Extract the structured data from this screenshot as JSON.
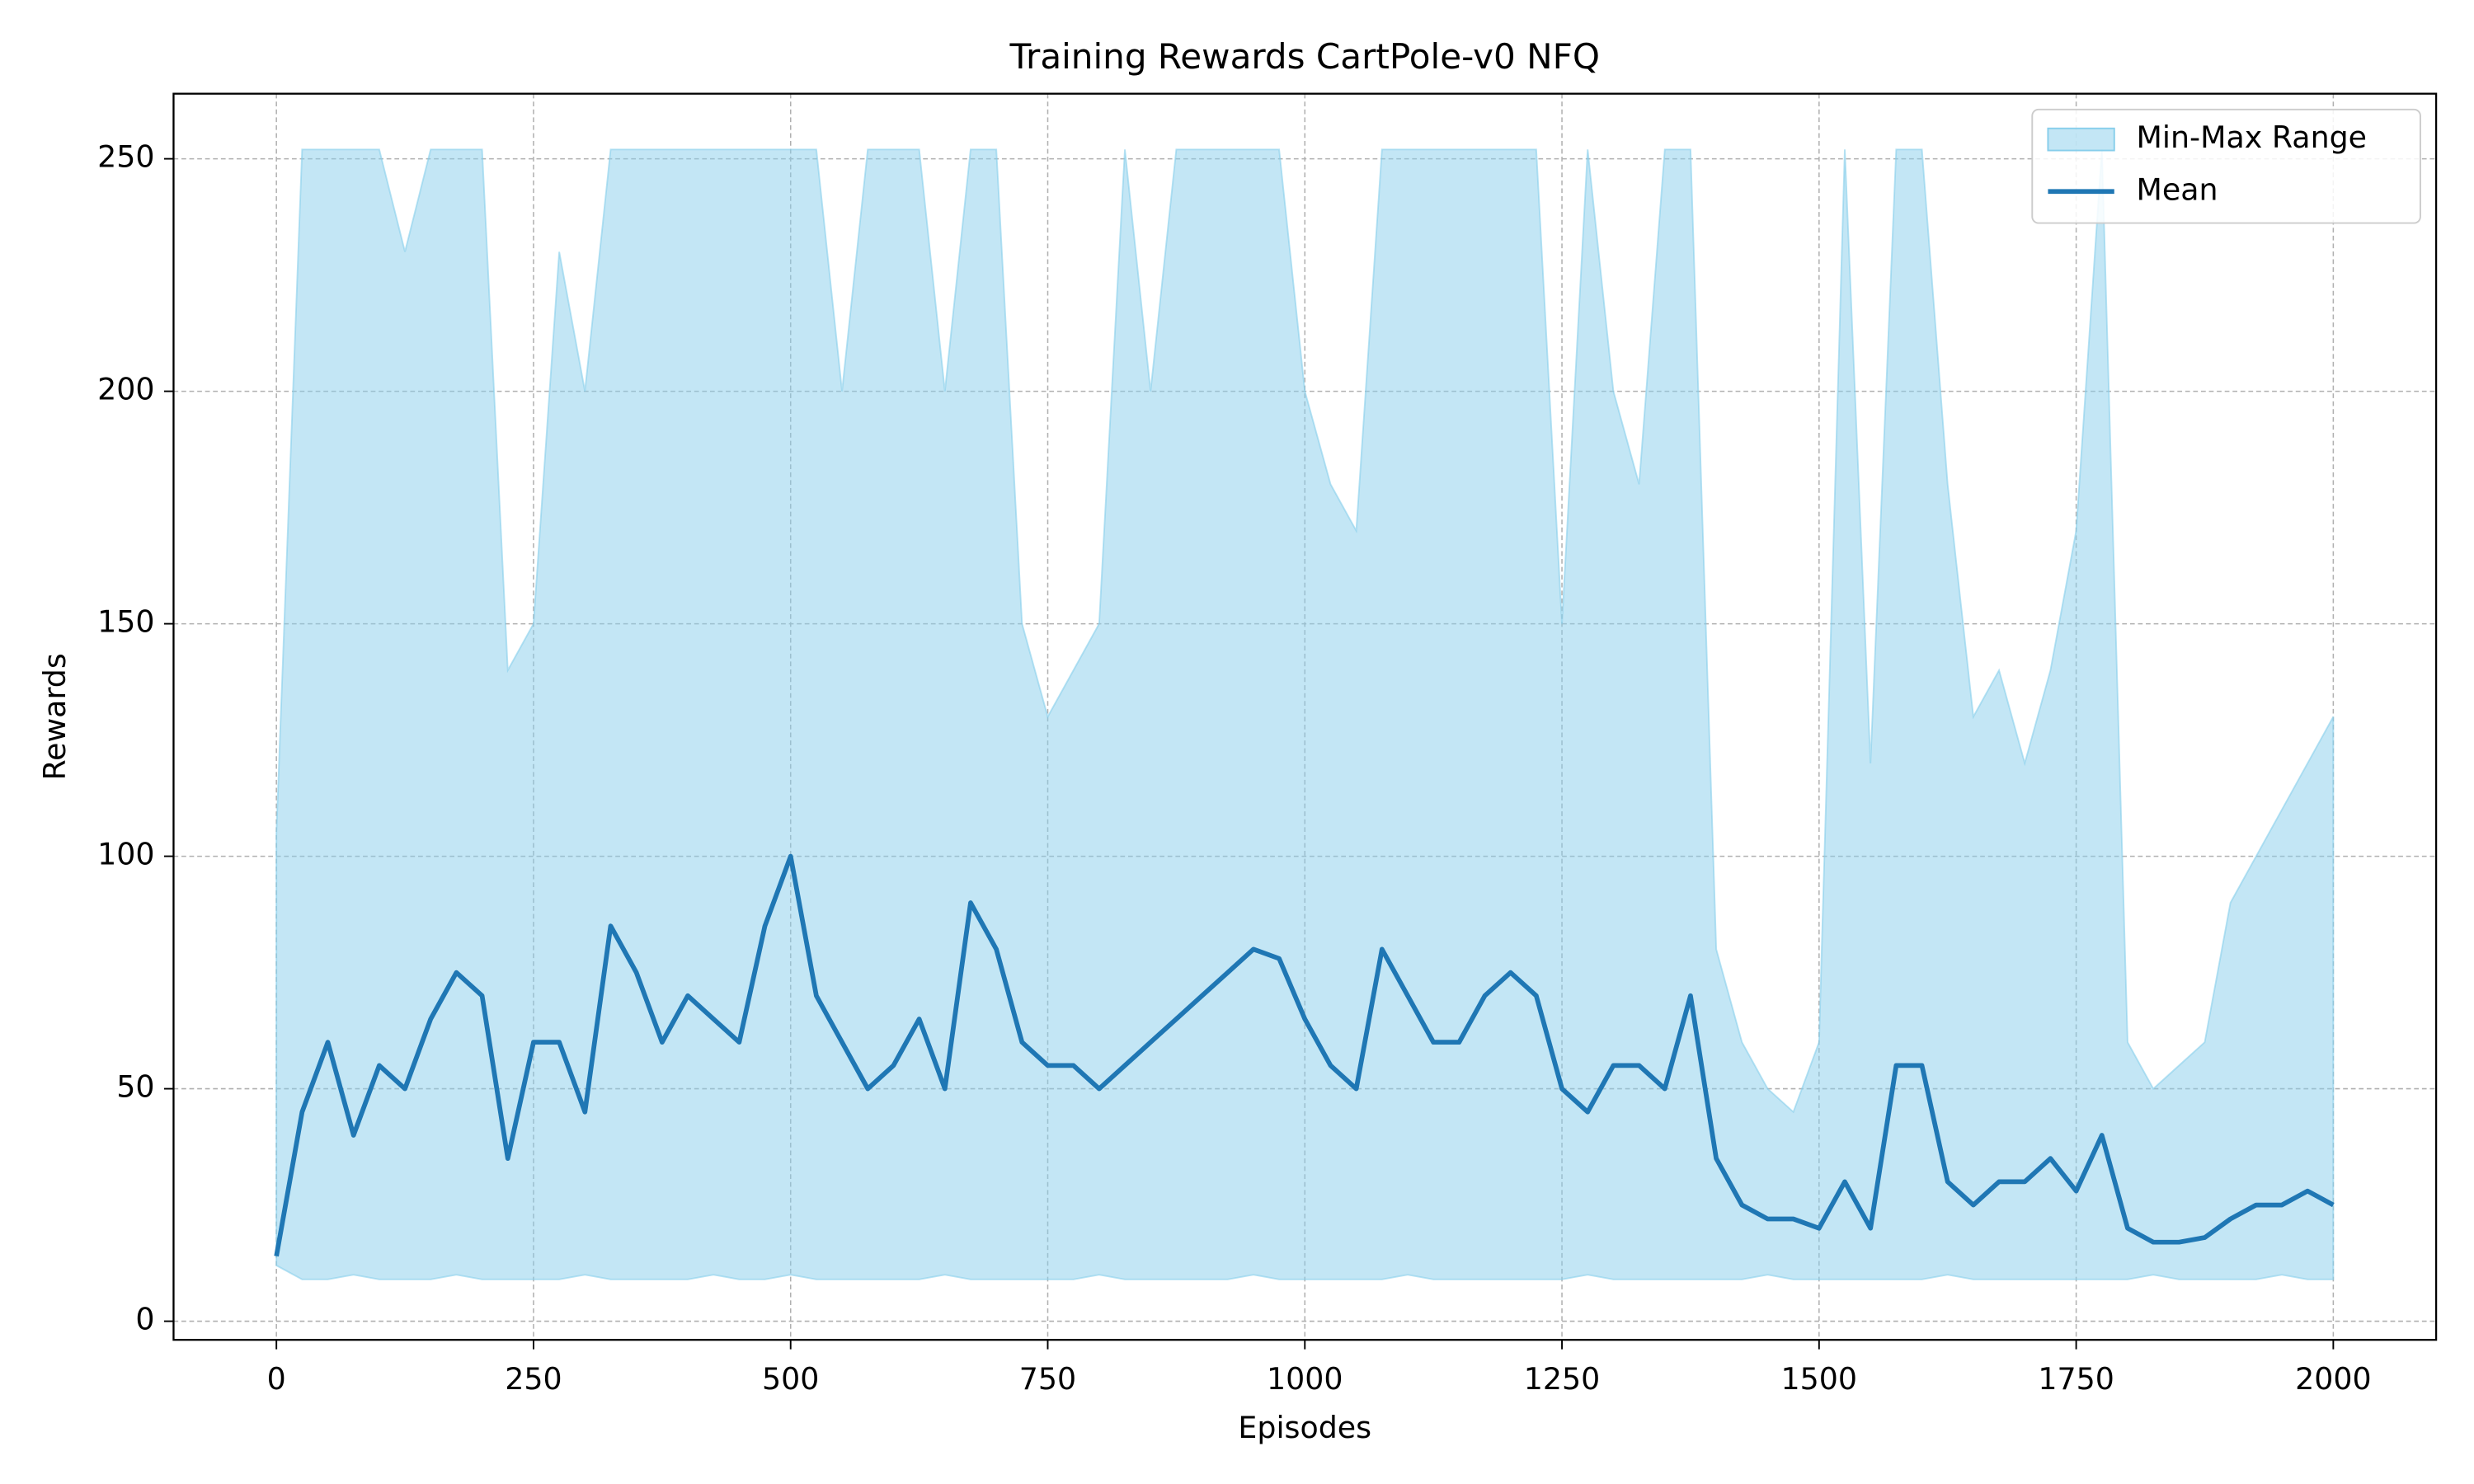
{
  "chart_data": {
    "type": "band-line",
    "title": "Training Rewards CartPole-v0 NFQ",
    "xlabel": "Episodes",
    "ylabel": "Rewards",
    "x": [
      0,
      25,
      50,
      75,
      100,
      125,
      150,
      175,
      200,
      225,
      250,
      275,
      300,
      325,
      350,
      375,
      400,
      425,
      450,
      475,
      500,
      525,
      550,
      575,
      600,
      625,
      650,
      675,
      700,
      725,
      750,
      775,
      800,
      825,
      850,
      875,
      900,
      925,
      950,
      975,
      1000,
      1025,
      1050,
      1075,
      1100,
      1125,
      1150,
      1175,
      1200,
      1225,
      1250,
      1275,
      1300,
      1325,
      1350,
      1375,
      1400,
      1425,
      1450,
      1475,
      1500,
      1525,
      1550,
      1575,
      1600,
      1625,
      1650,
      1675,
      1700,
      1725,
      1750,
      1775,
      1800,
      1825,
      1850,
      1875,
      1900,
      1925,
      1950,
      1975,
      2000
    ],
    "series": [
      {
        "name": "Min-Max Range",
        "color": "#87ceeb",
        "max": [
          105,
          252,
          252,
          252,
          252,
          230,
          252,
          252,
          252,
          140,
          150,
          230,
          200,
          252,
          252,
          252,
          252,
          252,
          252,
          252,
          252,
          252,
          200,
          252,
          252,
          252,
          200,
          252,
          252,
          150,
          130,
          140,
          150,
          252,
          200,
          252,
          252,
          252,
          252,
          252,
          200,
          180,
          170,
          252,
          252,
          252,
          252,
          252,
          252,
          252,
          150,
          252,
          200,
          180,
          252,
          252,
          80,
          60,
          50,
          45,
          60,
          252,
          120,
          252,
          252,
          180,
          130,
          140,
          120,
          140,
          170,
          252,
          60,
          50,
          55,
          60,
          90,
          100,
          110,
          120,
          130
        ],
        "min": [
          12,
          9,
          9,
          10,
          9,
          9,
          9,
          10,
          9,
          9,
          9,
          9,
          10,
          9,
          9,
          9,
          9,
          10,
          9,
          9,
          10,
          9,
          9,
          9,
          9,
          9,
          10,
          9,
          9,
          9,
          9,
          9,
          10,
          9,
          9,
          9,
          9,
          9,
          10,
          9,
          9,
          9,
          9,
          9,
          10,
          9,
          9,
          9,
          9,
          9,
          9,
          10,
          9,
          9,
          9,
          9,
          9,
          9,
          10,
          9,
          9,
          9,
          9,
          9,
          9,
          10,
          9,
          9,
          9,
          9,
          9,
          9,
          9,
          10,
          9,
          9,
          9,
          9,
          10,
          9,
          9
        ]
      },
      {
        "name": "Mean",
        "color": "#1f77b4",
        "values": [
          14,
          45,
          60,
          40,
          55,
          50,
          65,
          75,
          70,
          35,
          60,
          60,
          45,
          85,
          75,
          60,
          70,
          65,
          60,
          85,
          100,
          70,
          60,
          50,
          55,
          65,
          50,
          90,
          80,
          60,
          55,
          55,
          50,
          55,
          60,
          65,
          70,
          75,
          80,
          78,
          65,
          55,
          50,
          80,
          70,
          60,
          60,
          70,
          75,
          70,
          50,
          45,
          55,
          55,
          50,
          70,
          35,
          25,
          22,
          22,
          20,
          30,
          20,
          55,
          55,
          30,
          25,
          30,
          30,
          35,
          28,
          40,
          20,
          17,
          17,
          18,
          22,
          25,
          25,
          28,
          25
        ]
      }
    ],
    "xlim": [
      -100,
      2100
    ],
    "ylim": [
      -4,
      264
    ],
    "xticks": [
      0,
      250,
      500,
      750,
      1000,
      1250,
      1500,
      1750,
      2000
    ],
    "yticks": [
      0,
      50,
      100,
      150,
      200,
      250
    ],
    "grid": true,
    "legend": "upper right"
  }
}
